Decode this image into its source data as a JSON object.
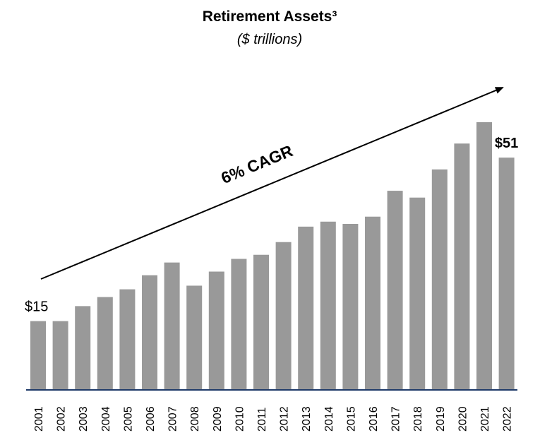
{
  "chart_data": {
    "type": "bar",
    "title": "Retirement Assets³",
    "subtitle": "($ trillions)",
    "annotation": "6% CAGR",
    "color": "#999999",
    "categories": [
      "2001",
      "2002",
      "2003",
      "2004",
      "2005",
      "2006",
      "2007",
      "2008",
      "2009",
      "2010",
      "2011",
      "2012",
      "2013",
      "2014",
      "2015",
      "2016",
      "2017",
      "2018",
      "2019",
      "2020",
      "2021",
      "2022"
    ],
    "values": [
      15,
      15,
      18.3,
      20.3,
      22,
      25.1,
      27.9,
      22.8,
      25.9,
      28.7,
      29.6,
      32.4,
      35.8,
      36.9,
      36.4,
      38,
      43.7,
      42.2,
      48.4,
      54.1,
      58.8,
      51
    ],
    "value_labels": [
      "$15",
      null,
      null,
      null,
      null,
      null,
      null,
      null,
      null,
      null,
      null,
      null,
      null,
      null,
      null,
      null,
      null,
      null,
      null,
      null,
      null,
      "$51"
    ]
  }
}
